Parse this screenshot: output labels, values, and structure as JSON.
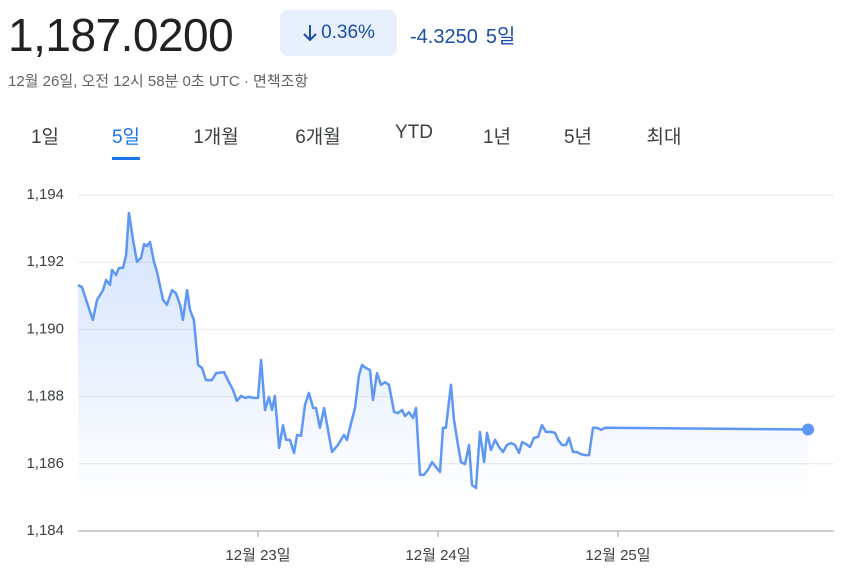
{
  "header": {
    "price": "1,187.0200",
    "change_pct": "0.36%",
    "change_abs": "-4.3250",
    "period": "5일",
    "timestamp": "12월 26일, 오전 12시 58분 0초 UTC · 면책조항"
  },
  "tabs": [
    "1일",
    "5일",
    "1개월",
    "6개월",
    "YTD",
    "1년",
    "5년",
    "최대"
  ],
  "selected_tab": 1,
  "chart_data": {
    "type": "line",
    "color": "#5e97f6",
    "grid": true,
    "x": [
      22.0,
      22.022,
      22.067,
      22.083,
      22.106,
      22.139,
      22.156,
      22.178,
      22.189,
      22.211,
      22.228,
      22.25,
      22.267,
      22.283,
      22.306,
      22.328,
      22.35,
      22.367,
      22.383,
      22.4,
      22.422,
      22.439,
      22.472,
      22.494,
      22.522,
      22.544,
      22.567,
      22.583,
      22.606,
      22.622,
      22.644,
      22.667,
      22.689,
      22.711,
      22.744,
      22.767,
      22.811,
      22.833,
      22.861,
      22.883,
      22.906,
      22.928,
      22.95,
      22.972,
      23.0,
      23.017,
      23.039,
      23.061,
      23.078,
      23.094,
      23.117,
      23.139,
      23.156,
      23.178,
      23.2,
      23.217,
      23.239,
      23.261,
      23.283,
      23.306,
      23.322,
      23.344,
      23.367,
      23.389,
      23.411,
      23.444,
      23.478,
      23.494,
      23.517,
      23.539,
      23.561,
      23.578,
      23.6,
      23.622,
      23.639,
      23.661,
      23.683,
      23.706,
      23.728,
      23.756,
      23.778,
      23.8,
      23.817,
      23.839,
      23.861,
      23.878,
      23.9,
      23.922,
      23.944,
      23.967,
      23.989,
      24.011,
      24.028,
      24.044,
      24.072,
      24.089,
      24.111,
      24.128,
      24.15,
      24.172,
      24.189,
      24.211,
      24.233,
      24.256,
      24.272,
      24.294,
      24.317,
      24.339,
      24.361,
      24.383,
      24.406,
      24.428,
      24.45,
      24.467,
      24.489,
      24.511,
      24.533,
      24.556,
      24.578,
      24.6,
      24.628,
      24.65,
      24.667,
      24.689,
      24.711,
      24.728,
      24.75,
      24.772,
      24.794,
      24.817,
      24.839,
      24.861,
      24.883,
      24.906,
      24.928,
      26.056
    ],
    "values": [
      1191.32,
      1191.26,
      1190.52,
      1190.28,
      1190.88,
      1191.17,
      1191.47,
      1191.32,
      1191.77,
      1191.62,
      1191.83,
      1191.83,
      1192.21,
      1193.46,
      1192.66,
      1192.01,
      1192.13,
      1192.54,
      1192.48,
      1192.6,
      1192.01,
      1191.71,
      1190.88,
      1190.73,
      1191.17,
      1191.08,
      1190.73,
      1190.28,
      1191.17,
      1190.58,
      1190.28,
      1188.94,
      1188.85,
      1188.49,
      1188.49,
      1188.7,
      1188.73,
      1188.49,
      1188.2,
      1187.87,
      1188.02,
      1187.96,
      1187.99,
      1187.96,
      1187.96,
      1189.09,
      1187.6,
      1187.99,
      1187.6,
      1188.02,
      1186.47,
      1187.15,
      1186.71,
      1186.71,
      1186.32,
      1186.86,
      1186.83,
      1187.75,
      1188.11,
      1187.66,
      1187.66,
      1187.07,
      1187.66,
      1187.01,
      1186.35,
      1186.56,
      1186.86,
      1186.71,
      1187.21,
      1187.66,
      1188.64,
      1188.94,
      1188.85,
      1188.79,
      1187.9,
      1188.7,
      1188.35,
      1188.43,
      1188.35,
      1187.54,
      1187.51,
      1187.6,
      1187.42,
      1187.54,
      1187.36,
      1187.66,
      1185.67,
      1185.67,
      1185.82,
      1186.05,
      1185.9,
      1185.76,
      1187.07,
      1187.07,
      1188.35,
      1187.3,
      1186.56,
      1186.05,
      1185.99,
      1186.56,
      1185.37,
      1185.28,
      1186.95,
      1186.05,
      1186.92,
      1186.41,
      1186.71,
      1186.5,
      1186.35,
      1186.56,
      1186.62,
      1186.56,
      1186.32,
      1186.65,
      1186.59,
      1186.5,
      1186.77,
      1186.8,
      1187.15,
      1186.95,
      1186.95,
      1186.92,
      1186.71,
      1186.56,
      1186.56,
      1186.77,
      1186.35,
      1186.35,
      1186.29,
      1186.26,
      1186.26,
      1187.07,
      1187.07,
      1187.01,
      1187.07,
      1187.02
    ],
    "xlim": [
      22,
      26.2
    ],
    "xticks": [
      {
        "value": 23,
        "label": "12월 23일"
      },
      {
        "value": 24,
        "label": "12월 24일"
      },
      {
        "value": 25,
        "label": "12월 25일"
      }
    ],
    "ylim": [
      1184,
      1194.5
    ],
    "yticks": [
      {
        "value": 1184,
        "label": "1,184"
      },
      {
        "value": 1186,
        "label": "1,186"
      },
      {
        "value": 1188,
        "label": "1,188"
      },
      {
        "value": 1190,
        "label": "1,190"
      },
      {
        "value": 1192,
        "label": "1,192"
      },
      {
        "value": 1194,
        "label": "1,194"
      }
    ]
  }
}
